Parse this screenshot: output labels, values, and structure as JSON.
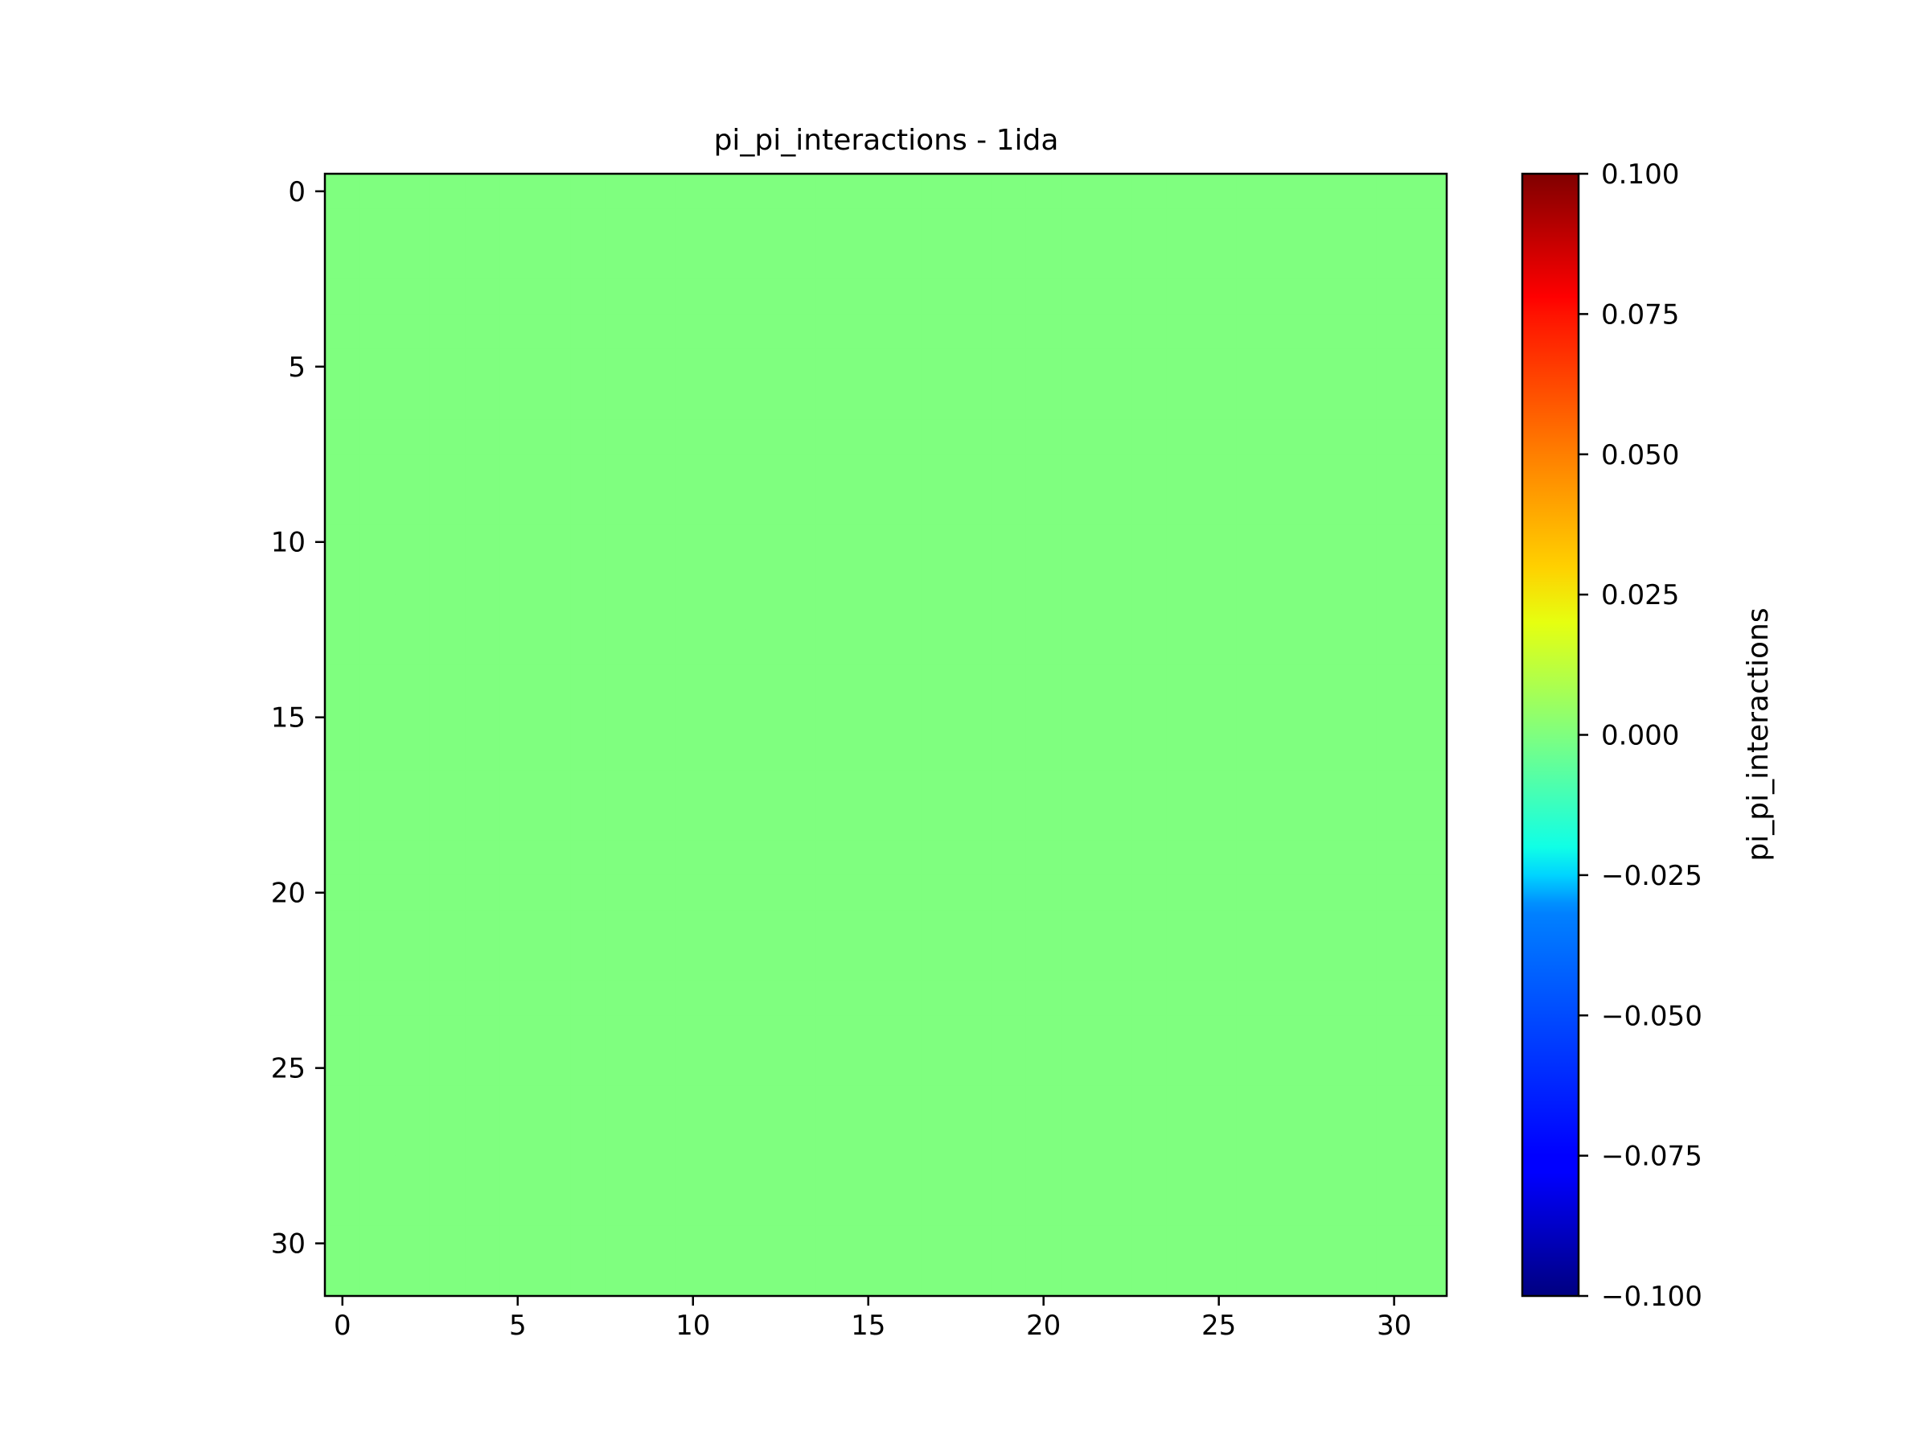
{
  "chart_data": {
    "type": "heatmap",
    "title": "pi_pi_interactions - 1ida",
    "xlabel": "",
    "ylabel": "",
    "rows": 32,
    "cols": 32,
    "fill_value": 0.0,
    "fill_color": "#7fff7f",
    "xlim": [
      -0.5,
      31.5
    ],
    "ylim": [
      31.5,
      -0.5
    ],
    "x_ticks": [
      0,
      5,
      10,
      15,
      20,
      25,
      30
    ],
    "y_ticks": [
      0,
      5,
      10,
      15,
      20,
      25,
      30
    ],
    "colorbar": {
      "label": "pi_pi_interactions",
      "range": [
        -0.1,
        0.1
      ],
      "ticks": [
        -0.1,
        -0.075,
        -0.05,
        -0.025,
        0.0,
        0.025,
        0.05,
        0.075,
        0.1
      ],
      "tick_labels": [
        "−0.100",
        "−0.075",
        "−0.050",
        "−0.025",
        "0.000",
        "0.025",
        "0.050",
        "0.075",
        "0.100"
      ],
      "colormap": "jet",
      "colormap_stops": [
        [
          0.0,
          "#000080"
        ],
        [
          0.11,
          "#0000ff"
        ],
        [
          0.125,
          "#0000ff"
        ],
        [
          0.34,
          "#0080ff"
        ],
        [
          0.35,
          "#0090ff"
        ],
        [
          0.375,
          "#00d4ff"
        ],
        [
          0.4,
          "#10ffe6"
        ],
        [
          0.5,
          "#7fff7f"
        ],
        [
          0.6,
          "#e6ff10"
        ],
        [
          0.65,
          "#ffd000"
        ],
        [
          0.75,
          "#ff7f00"
        ],
        [
          0.875,
          "#ff1200"
        ],
        [
          0.89,
          "#ff0000"
        ],
        [
          1.0,
          "#800000"
        ]
      ]
    }
  }
}
